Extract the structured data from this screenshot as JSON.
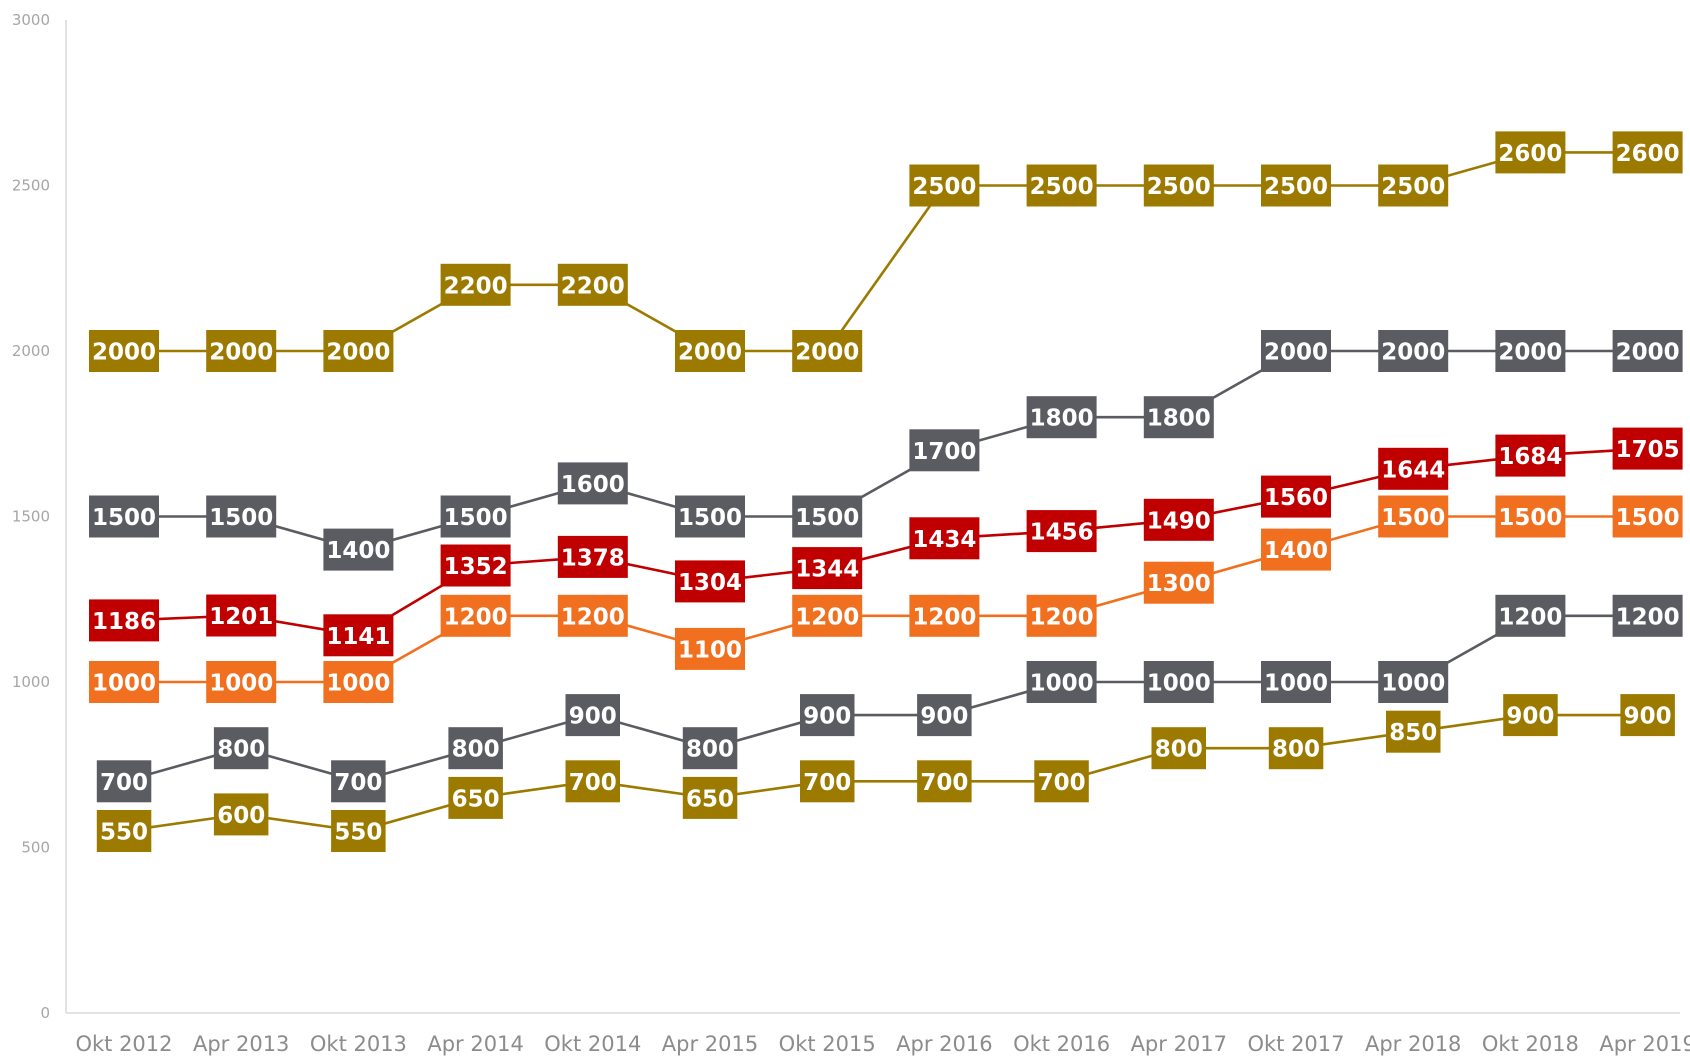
{
  "chart_data": {
    "type": "line",
    "title": "",
    "xlabel": "",
    "ylabel": "",
    "ylim": [
      0,
      3000
    ],
    "yticks": [
      0,
      500,
      1000,
      1500,
      2000,
      2500,
      3000
    ],
    "grid": false,
    "legend": "none",
    "categories": [
      "Okt 2012",
      "Apr 2013",
      "Okt 2013",
      "Apr 2014",
      "Okt 2014",
      "Apr 2015",
      "Okt 2015",
      "Apr 2016",
      "Okt 2016",
      "Apr 2017",
      "Okt 2017",
      "Apr 2018",
      "Okt 2018",
      "Apr 2019"
    ],
    "series": [
      {
        "color": "#9c7a00",
        "values": [
          2000,
          2000,
          2000,
          2200,
          2200,
          2000,
          2000,
          2500,
          2500,
          2500,
          2500,
          2500,
          2600,
          2600
        ]
      },
      {
        "color": "#5a5c61",
        "values": [
          1500,
          1500,
          1400,
          1500,
          1600,
          1500,
          1500,
          1700,
          1800,
          1800,
          2000,
          2000,
          2000,
          2000
        ]
      },
      {
        "color": "#c00000",
        "values": [
          1186,
          1201,
          1141,
          1352,
          1378,
          1304,
          1344,
          1434,
          1456,
          1490,
          1560,
          1644,
          1684,
          1705
        ]
      },
      {
        "color": "#f07020",
        "values": [
          1000,
          1000,
          1000,
          1200,
          1200,
          1100,
          1200,
          1200,
          1200,
          1300,
          1400,
          1500,
          1500,
          1500
        ]
      },
      {
        "color": "#5a5c61",
        "values": [
          700,
          800,
          700,
          800,
          900,
          800,
          900,
          900,
          1000,
          1000,
          1000,
          1000,
          1200,
          1200
        ]
      },
      {
        "color": "#9c7a00",
        "values": [
          550,
          600,
          550,
          650,
          700,
          650,
          700,
          700,
          700,
          800,
          800,
          850,
          900,
          900
        ]
      }
    ]
  }
}
